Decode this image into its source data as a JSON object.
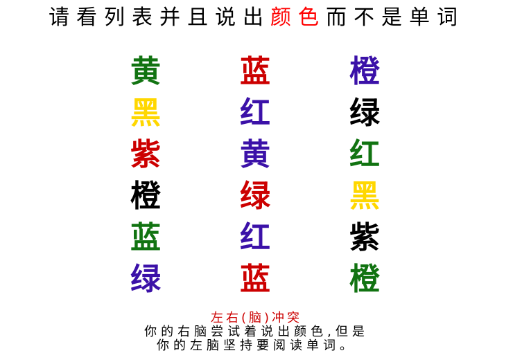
{
  "title": {
    "prefix": "请看列表并且说出",
    "highlight": "颜色",
    "suffix": "而不是单词",
    "highlight_color": "#ff0000"
  },
  "grid": {
    "columns": [
      [
        {
          "text": "黄",
          "color": "#117311"
        },
        {
          "text": "黑",
          "color": "#ffd700"
        },
        {
          "text": "紫",
          "color": "#cc0000"
        },
        {
          "text": "橙",
          "color": "#000000"
        },
        {
          "text": "蓝",
          "color": "#117311"
        },
        {
          "text": "绿",
          "color": "#3b11a8"
        }
      ],
      [
        {
          "text": "蓝",
          "color": "#cc0000"
        },
        {
          "text": "红",
          "color": "#3b11a8"
        },
        {
          "text": "黄",
          "color": "#3b11a8"
        },
        {
          "text": "绿",
          "color": "#cc0000"
        },
        {
          "text": "红",
          "color": "#3b11a8"
        },
        {
          "text": "蓝",
          "color": "#cc0000"
        }
      ],
      [
        {
          "text": "橙",
          "color": "#3b11a8"
        },
        {
          "text": "绿",
          "color": "#000000"
        },
        {
          "text": "红",
          "color": "#117311"
        },
        {
          "text": "黑",
          "color": "#ffd700"
        },
        {
          "text": "紫",
          "color": "#000000"
        },
        {
          "text": "橙",
          "color": "#117311"
        }
      ]
    ]
  },
  "caption": {
    "heading": "左右(脑)冲突",
    "line1": "你的右脑尝试着说出颜色,但是",
    "line2": "你的左脑坚持要阅读单词。",
    "heading_color": "#cc0000"
  }
}
